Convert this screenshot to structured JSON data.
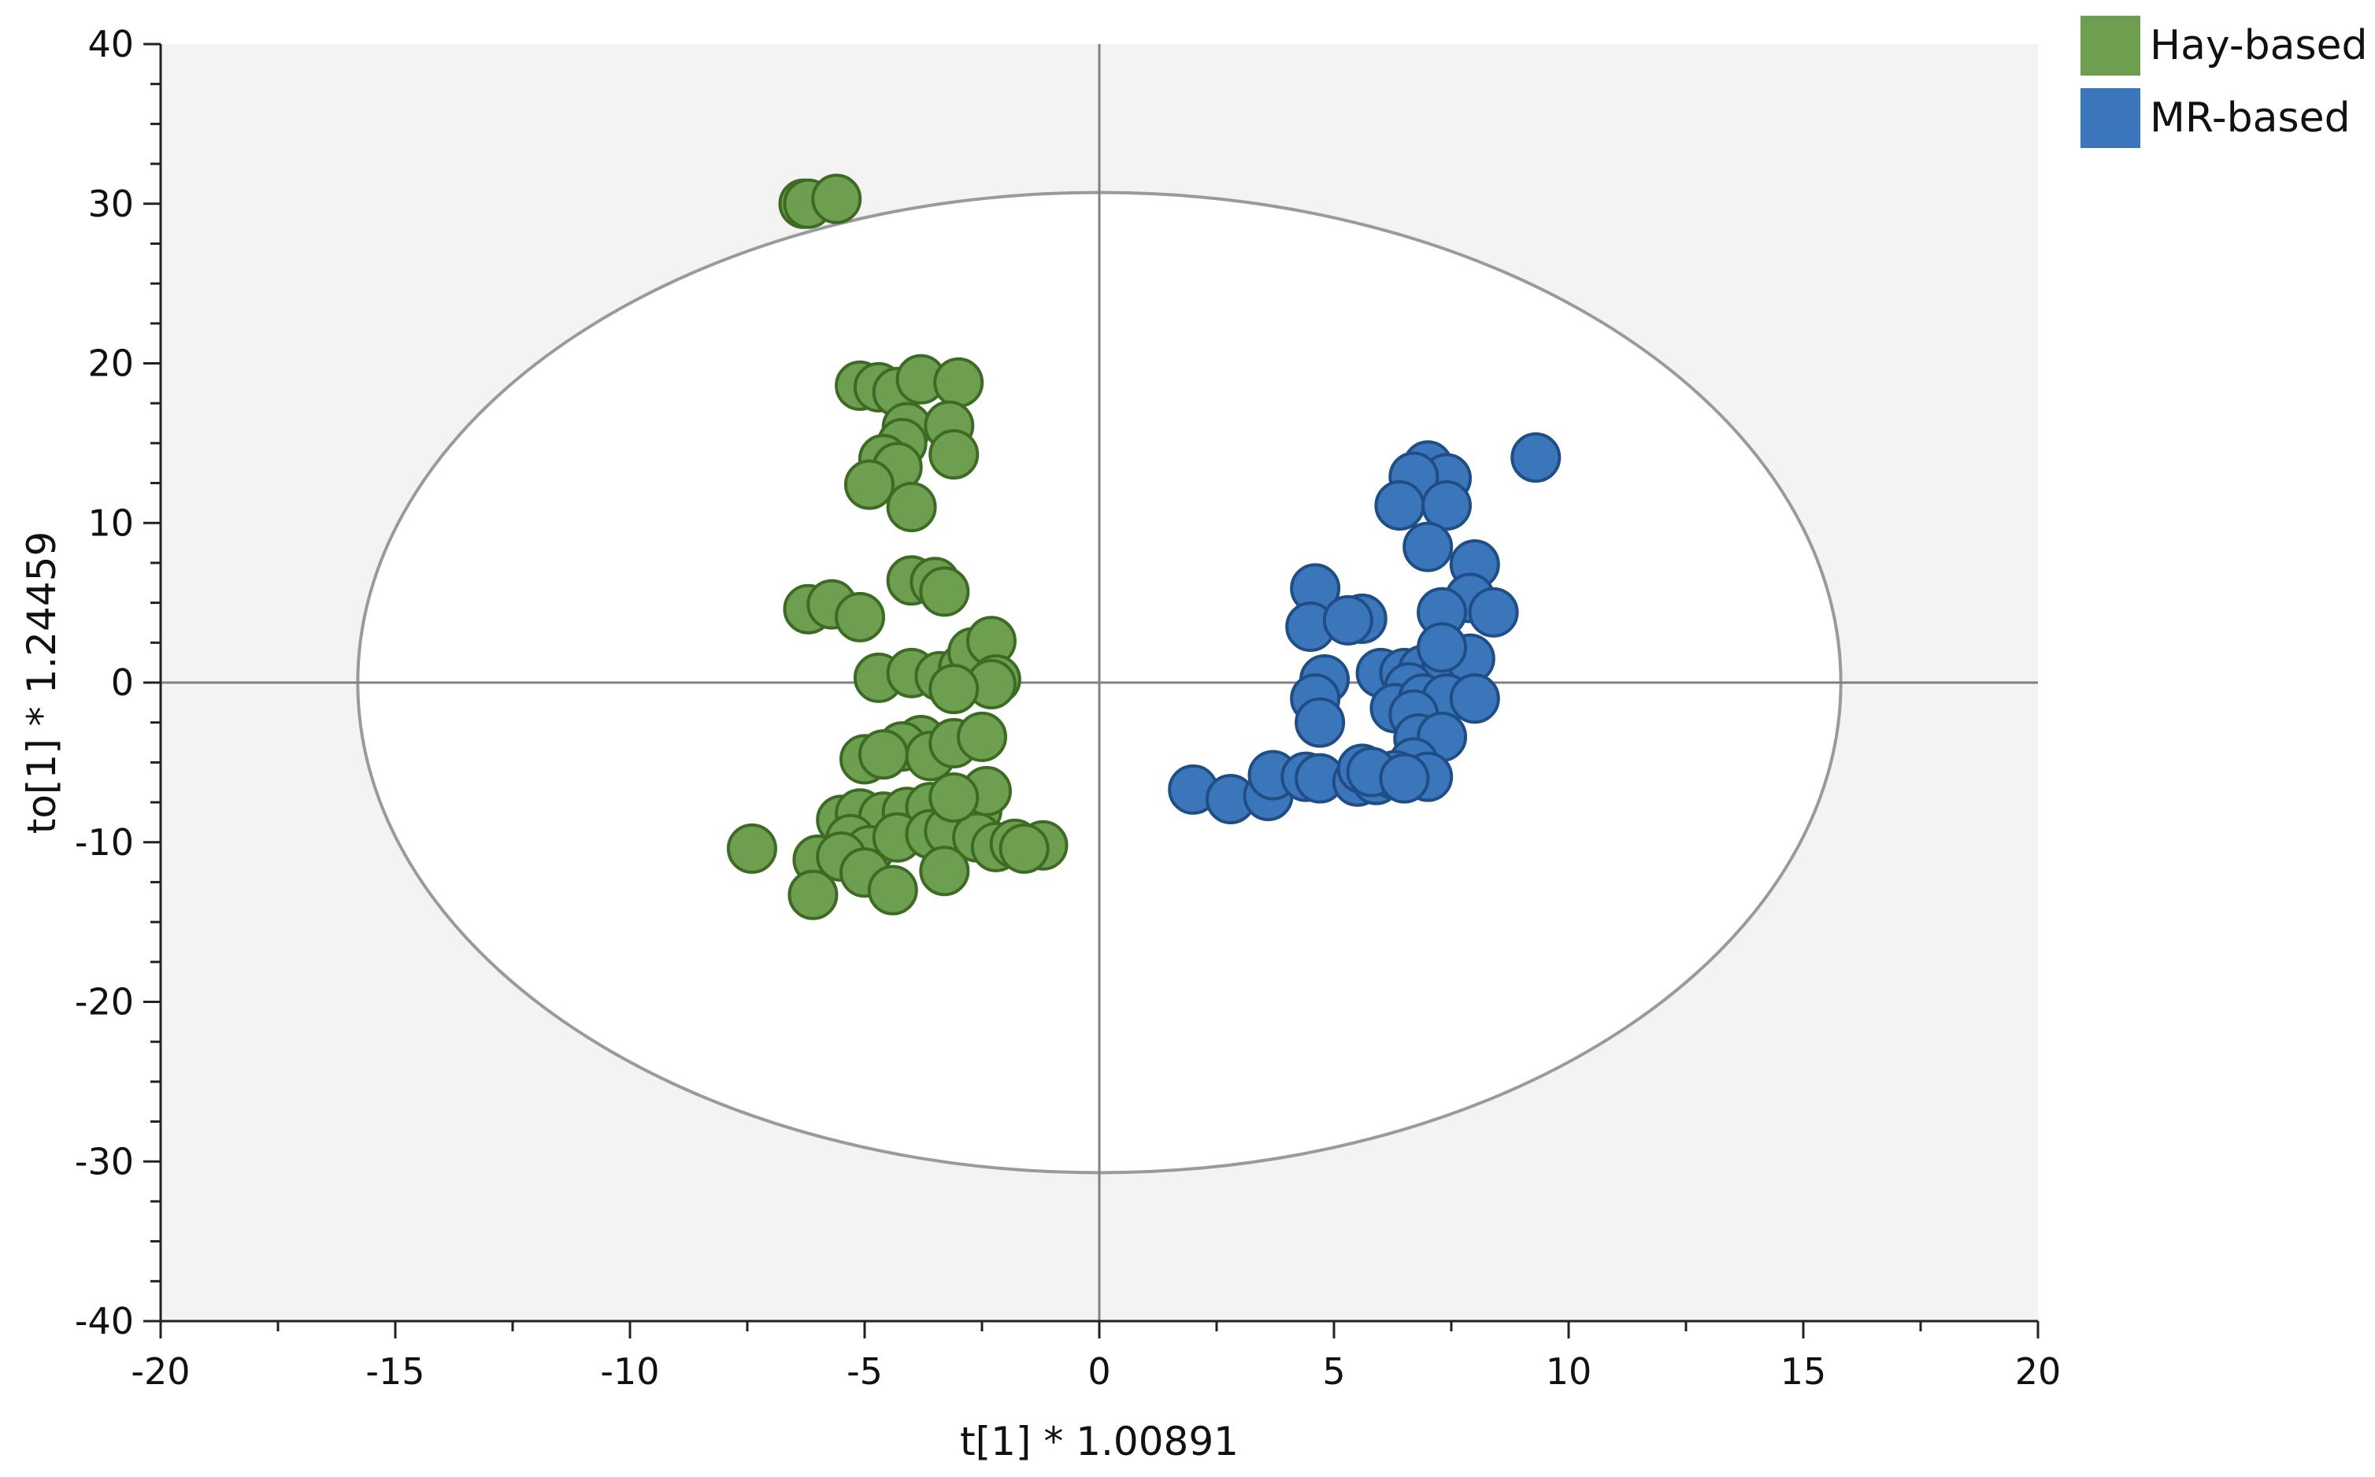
{
  "chart_data": {
    "type": "scatter",
    "xlabel": "t[1] * 1.00891",
    "ylabel": "to[1] * 1.24459",
    "xlim": [
      -20,
      20
    ],
    "ylim": [
      -40,
      40
    ],
    "x_ticks": [
      -20,
      -15,
      -10,
      -5,
      0,
      5,
      10,
      15,
      20
    ],
    "y_ticks": [
      -40,
      -30,
      -20,
      -10,
      0,
      10,
      20,
      30,
      40
    ],
    "x_tick_labels": [
      "-20",
      "-15",
      "-10",
      "-5",
      "0",
      "5",
      "10",
      "15",
      "20"
    ],
    "y_tick_labels": [
      "-40",
      "-30",
      "-20",
      "-10",
      "0",
      "10",
      "20",
      "30",
      "40"
    ],
    "grid": false,
    "legend_position": "top-right",
    "plot_background": "#f3f3f3",
    "ellipse": {
      "center": [
        0,
        0
      ],
      "radius_x": 15.8,
      "radius_y": 30.7,
      "fill": "#ffffff",
      "stroke": "#9a9a9a"
    },
    "series": [
      {
        "name": "Hay-based",
        "color": "#6e9e4f",
        "edge": "#3d6b24",
        "points": [
          [
            -6.3,
            30.0
          ],
          [
            -6.2,
            30.0
          ],
          [
            -5.6,
            30.3
          ],
          [
            -5.1,
            18.6
          ],
          [
            -4.7,
            18.5
          ],
          [
            -4.3,
            18.2
          ],
          [
            -3.8,
            19.0
          ],
          [
            -3.0,
            18.8
          ],
          [
            -4.1,
            16.0
          ],
          [
            -3.2,
            16.1
          ],
          [
            -4.2,
            15.0
          ],
          [
            -4.6,
            14.0
          ],
          [
            -4.3,
            13.5
          ],
          [
            -3.1,
            14.3
          ],
          [
            -4.9,
            12.4
          ],
          [
            -4.0,
            11.0
          ],
          [
            -6.2,
            4.6
          ],
          [
            -5.7,
            4.9
          ],
          [
            -5.1,
            4.1
          ],
          [
            -4.0,
            6.4
          ],
          [
            -3.5,
            6.3
          ],
          [
            -3.3,
            5.7
          ],
          [
            -4.7,
            0.3
          ],
          [
            -4.0,
            0.6
          ],
          [
            -3.4,
            0.4
          ],
          [
            -2.9,
            0.9
          ],
          [
            -2.7,
            1.9
          ],
          [
            -2.3,
            2.6
          ],
          [
            -2.2,
            0.2
          ],
          [
            -2.3,
            -0.1
          ],
          [
            -3.1,
            -0.4
          ],
          [
            -3.8,
            -3.6
          ],
          [
            -4.2,
            -4.0
          ],
          [
            -3.6,
            -4.6
          ],
          [
            -3.1,
            -3.8
          ],
          [
            -2.5,
            -3.4
          ],
          [
            -5.0,
            -4.8
          ],
          [
            -4.6,
            -4.5
          ],
          [
            -5.5,
            -8.6
          ],
          [
            -5.1,
            -8.2
          ],
          [
            -4.6,
            -8.4
          ],
          [
            -4.1,
            -8.1
          ],
          [
            -3.6,
            -7.8
          ],
          [
            -3.0,
            -7.5
          ],
          [
            -2.6,
            -8.0
          ],
          [
            -2.4,
            -6.8
          ],
          [
            -5.3,
            -9.8
          ],
          [
            -4.9,
            -10.5
          ],
          [
            -4.3,
            -9.7
          ],
          [
            -3.6,
            -9.5
          ],
          [
            -3.2,
            -9.3
          ],
          [
            -2.6,
            -9.7
          ],
          [
            -2.2,
            -10.3
          ],
          [
            -1.8,
            -10.1
          ],
          [
            -1.2,
            -10.2
          ],
          [
            -1.6,
            -10.4
          ],
          [
            -7.4,
            -10.4
          ],
          [
            -6.0,
            -11.1
          ],
          [
            -5.5,
            -10.9
          ],
          [
            -5.0,
            -11.9
          ],
          [
            -6.1,
            -13.3
          ],
          [
            -4.4,
            -13.0
          ],
          [
            -3.3,
            -11.8
          ],
          [
            -3.1,
            -7.2
          ]
        ]
      },
      {
        "name": "MR-based",
        "color": "#3b76bb",
        "edge": "#1f4d85",
        "points": [
          [
            9.3,
            14.1
          ],
          [
            7.0,
            13.6
          ],
          [
            7.4,
            12.8
          ],
          [
            6.7,
            12.9
          ],
          [
            6.4,
            11.1
          ],
          [
            7.4,
            11.1
          ],
          [
            7.0,
            8.5
          ],
          [
            8.0,
            7.4
          ],
          [
            7.9,
            5.3
          ],
          [
            8.4,
            4.4
          ],
          [
            7.3,
            4.4
          ],
          [
            4.6,
            5.9
          ],
          [
            4.5,
            3.5
          ],
          [
            5.6,
            4.0
          ],
          [
            5.3,
            3.9
          ],
          [
            6.0,
            0.6
          ],
          [
            6.5,
            0.6
          ],
          [
            6.9,
            0.8
          ],
          [
            7.4,
            1.3
          ],
          [
            7.9,
            1.5
          ],
          [
            7.3,
            2.2
          ],
          [
            4.8,
            0.2
          ],
          [
            6.6,
            -0.3
          ],
          [
            4.6,
            -1.0
          ],
          [
            4.7,
            -2.5
          ],
          [
            6.3,
            -1.6
          ],
          [
            6.9,
            -1.0
          ],
          [
            7.4,
            -1.0
          ],
          [
            8.0,
            -1.0
          ],
          [
            6.7,
            -2.0
          ],
          [
            6.8,
            -3.5
          ],
          [
            7.3,
            -3.4
          ],
          [
            6.7,
            -5.0
          ],
          [
            7.0,
            -5.9
          ],
          [
            2.0,
            -6.7
          ],
          [
            2.8,
            -7.3
          ],
          [
            3.6,
            -7.1
          ],
          [
            3.7,
            -5.8
          ],
          [
            4.4,
            -5.9
          ],
          [
            4.7,
            -6.0
          ],
          [
            5.5,
            -6.2
          ],
          [
            5.9,
            -6.1
          ],
          [
            6.3,
            -5.8
          ],
          [
            5.6,
            -5.4
          ],
          [
            5.8,
            -5.6
          ],
          [
            6.5,
            -6.0
          ]
        ]
      }
    ]
  }
}
